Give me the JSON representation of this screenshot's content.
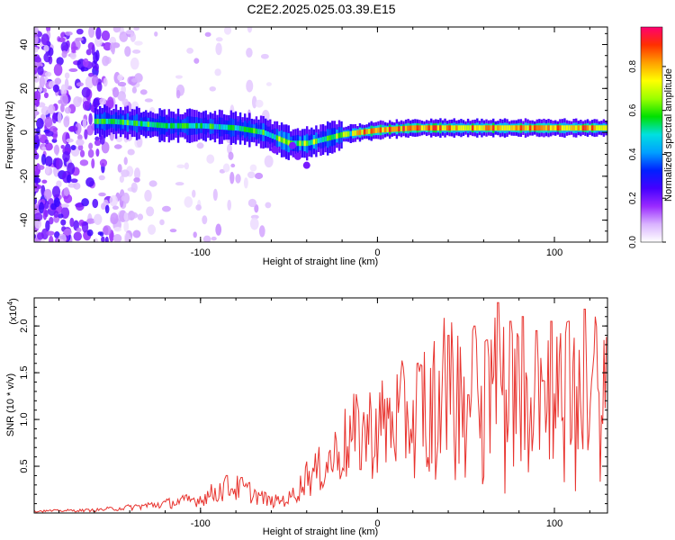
{
  "page": {
    "title": "C2E2.2025.025.03.39.E15"
  },
  "chart_data": [
    {
      "type": "heatmap",
      "xlabel": "Height of straight line (km)",
      "ylabel": "Frequency (Hz)",
      "xlim": [
        -194,
        130
      ],
      "ylim": [
        -50,
        48
      ],
      "x_ticks": [
        -100,
        0,
        100
      ],
      "y_ticks": [
        -40,
        -20,
        0,
        20,
        40
      ],
      "colorbar": {
        "label": "Normalized spectral amplitude",
        "range": [
          0,
          0.98
        ],
        "ticks": [
          "0.0",
          "0.2",
          "0.4",
          "0.6",
          "0.8"
        ],
        "colormap": [
          "#ffffff",
          "#d9b3ff",
          "#9a2bff",
          "#4400ff",
          "#0020ff",
          "#00a0ff",
          "#00e0e0",
          "#00e000",
          "#9aff00",
          "#ffff00",
          "#ffa000",
          "#ff3000",
          "#ff0070"
        ]
      },
      "ridge": {
        "description_points": [
          [
            -150,
            5
          ],
          [
            -120,
            3
          ],
          [
            -100,
            3
          ],
          [
            -80,
            2
          ],
          [
            -65,
            0
          ],
          [
            -50,
            -5
          ],
          [
            -40,
            -5
          ],
          [
            -30,
            -3
          ],
          [
            -20,
            -1
          ],
          [
            -10,
            0
          ],
          [
            0,
            1
          ],
          [
            20,
            2
          ],
          [
            60,
            2
          ],
          [
            100,
            2
          ],
          [
            130,
            2
          ]
        ]
      }
    },
    {
      "type": "line",
      "xlabel": "Height of straight line (km)",
      "ylabel": "SNR (10 * v/v)",
      "y_multiplier": "(x10",
      "y_multiplier_exp": "4",
      "xlim": [
        -194,
        130
      ],
      "ylim": [
        0,
        2.3
      ],
      "x_ticks": [
        -100,
        0,
        100
      ],
      "y_ticks": [
        0.5,
        1.0,
        1.5,
        2.0
      ],
      "y_tick_labels": [
        "0.5",
        "1.0",
        "1.5",
        "2.0"
      ],
      "series": [
        {
          "color": "#e8332e",
          "envelope_points": [
            [
              -194,
              0.02
            ],
            [
              -160,
              0.03
            ],
            [
              -140,
              0.06
            ],
            [
              -120,
              0.1
            ],
            [
              -100,
              0.15
            ],
            [
              -85,
              0.28
            ],
            [
              -75,
              0.25
            ],
            [
              -60,
              0.12
            ],
            [
              -50,
              0.15
            ],
            [
              -40,
              0.35
            ],
            [
              -30,
              0.5
            ],
            [
              -20,
              0.7
            ],
            [
              -10,
              0.85
            ],
            [
              0,
              0.9
            ],
            [
              10,
              1.0
            ],
            [
              20,
              1.05
            ],
            [
              30,
              1.25
            ],
            [
              40,
              1.35
            ],
            [
              50,
              1.25
            ],
            [
              60,
              1.3
            ],
            [
              70,
              1.4
            ],
            [
              80,
              1.3
            ],
            [
              90,
              1.35
            ],
            [
              100,
              1.3
            ],
            [
              110,
              1.3
            ],
            [
              120,
              1.35
            ],
            [
              130,
              1.2
            ]
          ],
          "peaks": [
            [
              -85,
              0.4
            ],
            [
              -77,
              0.38
            ],
            [
              -40,
              0.55
            ],
            [
              30,
              1.55
            ],
            [
              40,
              1.9
            ],
            [
              55,
              2.0
            ],
            [
              62,
              1.85
            ],
            [
              68,
              2.25
            ],
            [
              75,
              2.05
            ],
            [
              82,
              2.1
            ],
            [
              90,
              1.95
            ],
            [
              98,
              2.05
            ],
            [
              108,
              2.05
            ],
            [
              117,
              2.18
            ],
            [
              123,
              2.1
            ],
            [
              128,
              1.85
            ]
          ]
        }
      ]
    }
  ]
}
